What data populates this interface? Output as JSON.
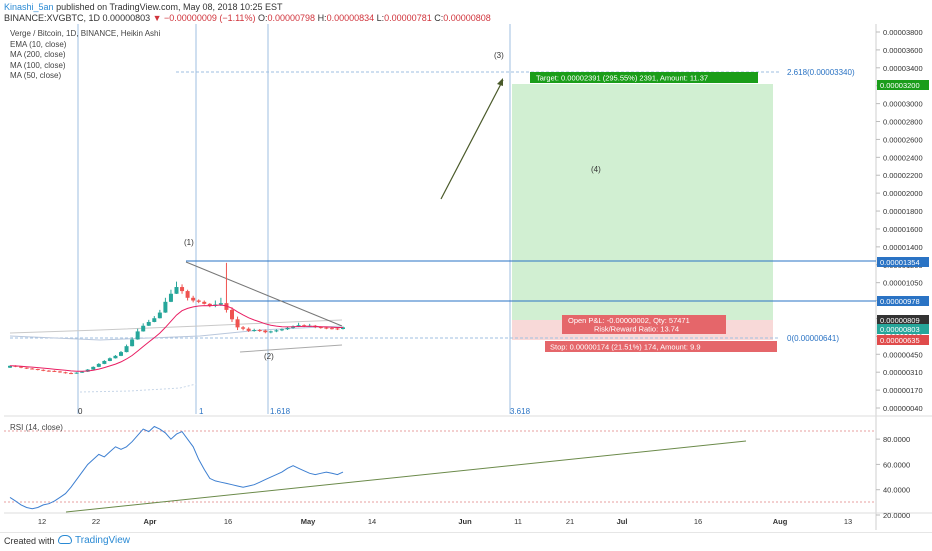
{
  "header": {
    "author": "Kinashi_5an",
    "published": "published on TradingView.com, May 08, 2018 10:25 EST",
    "symbol": "BINANCE:XVGBTC, 1D",
    "last": "0.00000803",
    "change": "▼ −0.00000009 (−1.11%)",
    "o_key": "O:",
    "o_val": "0.00000798",
    "h_key": "H:",
    "h_val": "0.00000834",
    "l_key": "L:",
    "l_val": "0.00000781",
    "c_key": "C:",
    "c_val": "0.00000808"
  },
  "legend": {
    "title": "Verge / Bitcoin, 1D, BINANCE, Heikin Ashi",
    "items": [
      "EMA (10, close)",
      "MA (200, close)",
      "MA (100, close)",
      "MA (50, close)"
    ]
  },
  "rsi": {
    "label": "RSI (14, close)"
  },
  "footer": {
    "created": "Created with",
    "brand": "TradingView"
  },
  "colors": {
    "up": "#26a69a",
    "down": "#ef5350",
    "ema": "#e91e63",
    "rsi": "#3d7fd1",
    "fib": "#2a73c4",
    "target_zone": "#cfeed0",
    "stop_zone": "#f8d7d6"
  },
  "chart_data": [
    {
      "type": "candlestick",
      "title": "Verge / Bitcoin, 1D, BINANCE, Heikin Ashi",
      "x_ticks": [
        "12",
        "22",
        "Apr",
        "16",
        "May",
        "14",
        "Jun",
        "11",
        "21",
        "Jul",
        "16",
        "Aug",
        "13"
      ],
      "y_ticks": [
        "0.00003800",
        "0.00003600",
        "0.00003400",
        "0.00003200",
        "0.00003000",
        "0.00002800",
        "0.00002600",
        "0.00002400",
        "0.00002200",
        "0.00002000",
        "0.00001800",
        "0.00001600",
        "0.00001400",
        "0.00001200",
        "0.00001050",
        "0.00000900",
        "0.00000750",
        "0.00000600",
        "0.00000450",
        "0.00000310",
        "0.00000170",
        "0.00000040"
      ],
      "price_tags": [
        {
          "label": "0.00003200",
          "color": "#1a9d1a"
        },
        {
          "label": "0.00001354",
          "color": "#2a73c4"
        },
        {
          "label": "0.00000978",
          "color": "#2a73c4"
        },
        {
          "label": "0.00000809",
          "color": "#333333"
        },
        {
          "label": "0.00000803",
          "color": "#26a69a"
        },
        {
          "label": "0.00000635",
          "color": "#e04b4b"
        }
      ],
      "candles": [
        [
          600,
          614,
          616,
          598
        ],
        [
          614,
          608,
          618,
          604
        ],
        [
          608,
          600,
          610,
          596
        ],
        [
          600,
          594,
          602,
          590
        ],
        [
          594,
          590,
          598,
          586
        ],
        [
          590,
          584,
          592,
          580
        ],
        [
          584,
          578,
          588,
          574
        ],
        [
          578,
          576,
          582,
          570
        ],
        [
          576,
          572,
          580,
          568
        ],
        [
          572,
          566,
          576,
          562
        ],
        [
          566,
          560,
          570,
          556
        ],
        [
          560,
          558,
          566,
          552
        ],
        [
          558,
          563,
          566,
          555
        ],
        [
          563,
          570,
          574,
          561
        ],
        [
          570,
          586,
          590,
          568
        ],
        [
          586,
          606,
          610,
          584
        ],
        [
          606,
          628,
          634,
          604
        ],
        [
          628,
          650,
          656,
          626
        ],
        [
          650,
          670,
          676,
          648
        ],
        [
          670,
          688,
          694,
          668
        ],
        [
          688,
          716,
          724,
          686
        ],
        [
          716,
          760,
          772,
          714
        ],
        [
          760,
          810,
          826,
          758
        ],
        [
          810,
          870,
          890,
          808
        ],
        [
          870,
          912,
          930,
          868
        ],
        [
          912,
          940,
          956,
          910
        ],
        [
          940,
          968,
          984,
          938
        ],
        [
          968,
          1010,
          1030,
          966
        ],
        [
          1010,
          1090,
          1120,
          1008
        ],
        [
          1090,
          1150,
          1180,
          1088
        ],
        [
          1150,
          1200,
          1240,
          1148
        ],
        [
          1200,
          1170,
          1220,
          1150
        ],
        [
          1170,
          1120,
          1180,
          1100
        ],
        [
          1120,
          1100,
          1135,
          1086
        ],
        [
          1100,
          1090,
          1108,
          1080
        ],
        [
          1090,
          1075,
          1100,
          1070
        ],
        [
          1075,
          1060,
          1080,
          1050
        ],
        [
          1060,
          1070,
          1100,
          1050
        ],
        [
          1070,
          1080,
          1120,
          1060
        ],
        [
          1080,
          1030,
          1380,
          1010
        ],
        [
          1030,
          960,
          1050,
          940
        ],
        [
          960,
          900,
          980,
          880
        ],
        [
          900,
          890,
          910,
          878
        ],
        [
          890,
          874,
          900,
          866
        ],
        [
          874,
          880,
          890,
          868
        ],
        [
          880,
          876,
          888,
          866
        ],
        [
          876,
          864,
          884,
          856
        ],
        [
          864,
          870,
          876,
          856
        ],
        [
          870,
          878,
          886,
          864
        ],
        [
          878,
          886,
          892,
          872
        ],
        [
          886,
          896,
          904,
          880
        ],
        [
          896,
          908,
          914,
          890
        ],
        [
          908,
          916,
          934,
          902
        ],
        [
          916,
          910,
          922,
          902
        ],
        [
          910,
          912,
          926,
          904
        ],
        [
          912,
          902,
          918,
          894
        ],
        [
          902,
          898,
          908,
          890
        ],
        [
          898,
          894,
          904,
          886
        ],
        [
          894,
          892,
          900,
          884
        ],
        [
          892,
          888,
          896,
          880
        ],
        [
          888,
          900,
          906,
          884
        ]
      ],
      "unit_note": "candle values are prices in 1e-8 BTC (satoshis): [open, close, high, low]",
      "fib_levels": [
        {
          "label": "0(0.00000641)",
          "value": 641
        },
        {
          "label": "2.618(0.00003340)",
          "value": 3340
        }
      ],
      "time_fib_labels": [
        "0",
        "1",
        "1.618",
        "3.618"
      ],
      "wave_labels": [
        "(1)",
        "(2)",
        "(3)",
        "(4)"
      ],
      "position": {
        "target_text": "Target: 0.00002391 (295.55%) 2391, Amount: 11.37",
        "pnl_text": "Open P&L: -0.00000002, Qty: 57471",
        "rr_text": "Risk/Reward Ratio: 13.74",
        "stop_text": "Stop: 0.00000174 (21.51%) 174, Amount: 9.9"
      }
    },
    {
      "type": "line",
      "title": "RSI (14, close)",
      "y_ticks": [
        "80.0000",
        "60.0000",
        "40.0000",
        "20.0000"
      ],
      "ylim": [
        20,
        88
      ],
      "series": [
        {
          "values": [
            30,
            27,
            24,
            22,
            21,
            22,
            24,
            25,
            27,
            30,
            33,
            38,
            44,
            50,
            56,
            60,
            64,
            62,
            66,
            70,
            68,
            70,
            74,
            79,
            84,
            82,
            86,
            84,
            81,
            76,
            80,
            82,
            76,
            70,
            60,
            52,
            45,
            43,
            42,
            41,
            40,
            39,
            38,
            39,
            40,
            42,
            44,
            46,
            48,
            50,
            53,
            55,
            53,
            51,
            49,
            48,
            49,
            50,
            49,
            48,
            50
          ]
        }
      ],
      "levels": [
        80,
        30
      ]
    }
  ]
}
